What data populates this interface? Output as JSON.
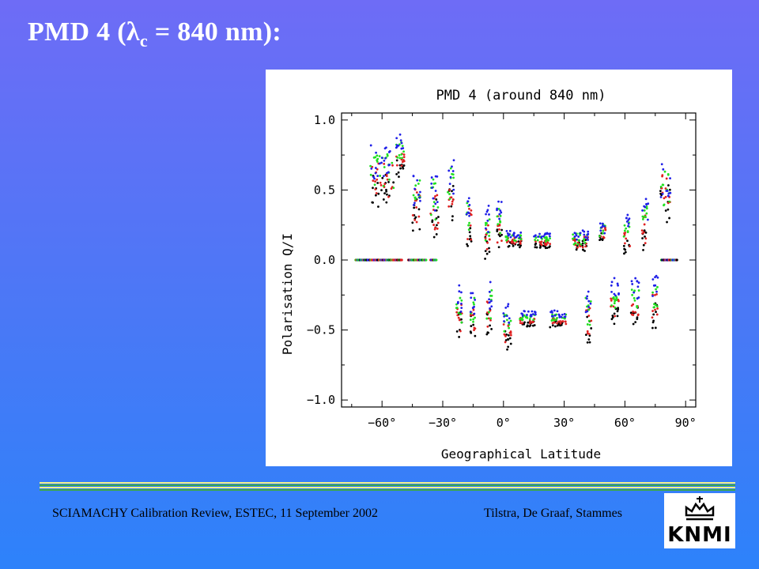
{
  "slide": {
    "title_prefix": "PMD 4 (",
    "title_lambda": "λ",
    "title_sub": "c",
    "title_suffix": " = 840 nm):",
    "footer_left": "SCIAMACHY Calibration Review, ESTEC, 11 September 2002",
    "footer_right": "Tilstra, De Graaf, Stammes",
    "logo_text": "KNMI",
    "colors": {
      "background_top": "#6e6cf6",
      "background_bottom": "#2d82fa",
      "rule_yellow": "#f2f28c",
      "rule_green": "#3ca848"
    }
  },
  "chart_data": {
    "type": "scatter",
    "title": "PMD 4 (around 840 nm)",
    "xlabel": "Geographical Latitude",
    "ylabel": "Polarisation Q/I",
    "xlim": [
      -80,
      95
    ],
    "ylim": [
      -1.05,
      1.05
    ],
    "xticks": [
      -60,
      -30,
      0,
      30,
      60,
      90
    ],
    "xtick_labels": [
      "−60°",
      "−30°",
      "0°",
      "30°",
      "60°",
      "90°"
    ],
    "yticks": [
      1.0,
      0.5,
      0.0,
      -0.5,
      -1.0
    ],
    "ytick_labels": [
      "1.0",
      "0.5",
      "0.0",
      "−0.5",
      "−1.0"
    ],
    "grid": false,
    "series_colors": [
      "#000000",
      "#e02020",
      "#20e020",
      "#2020e8"
    ],
    "clusters": [
      {
        "x": -60,
        "width": 12,
        "y": 0.6,
        "spread": 0.25
      },
      {
        "x": -51,
        "width": 4,
        "y": 0.75,
        "spread": 0.12
      },
      {
        "x": -43,
        "width": 4,
        "y": 0.42,
        "spread": 0.25
      },
      {
        "x": -34,
        "width": 4,
        "y": 0.4,
        "spread": 0.3
      },
      {
        "x": -26,
        "width": 3,
        "y": 0.5,
        "spread": 0.25
      },
      {
        "x": -22,
        "width": 3,
        "y": -0.38,
        "spread": 0.22
      },
      {
        "x": -17,
        "width": 2.5,
        "y": 0.3,
        "spread": 0.25
      },
      {
        "x": -15,
        "width": 2.5,
        "y": -0.38,
        "spread": 0.2
      },
      {
        "x": -8,
        "width": 2.5,
        "y": 0.2,
        "spread": 0.2
      },
      {
        "x": -7,
        "width": 2.5,
        "y": -0.35,
        "spread": 0.22
      },
      {
        "x": -2,
        "width": 2.5,
        "y": 0.25,
        "spread": 0.2
      },
      {
        "x": 2,
        "width": 4,
        "y": -0.48,
        "spread": 0.15
      },
      {
        "x": 5,
        "width": 8,
        "y": 0.15,
        "spread": 0.05
      },
      {
        "x": 12,
        "width": 8,
        "y": -0.42,
        "spread": 0.04
      },
      {
        "x": 19,
        "width": 8,
        "y": 0.14,
        "spread": 0.04
      },
      {
        "x": 27,
        "width": 8,
        "y": -0.42,
        "spread": 0.05
      },
      {
        "x": 38,
        "width": 8,
        "y": 0.14,
        "spread": 0.08
      },
      {
        "x": 42,
        "width": 3,
        "y": -0.4,
        "spread": 0.2
      },
      {
        "x": 49,
        "width": 3,
        "y": 0.2,
        "spread": 0.1
      },
      {
        "x": 55,
        "width": 4,
        "y": -0.3,
        "spread": 0.15
      },
      {
        "x": 61,
        "width": 3,
        "y": 0.18,
        "spread": 0.12
      },
      {
        "x": 65,
        "width": 4,
        "y": -0.3,
        "spread": 0.15
      },
      {
        "x": 70,
        "width": 3,
        "y": 0.25,
        "spread": 0.2
      },
      {
        "x": 75,
        "width": 3,
        "y": -0.3,
        "spread": 0.18
      },
      {
        "x": 80,
        "width": 5,
        "y": 0.5,
        "spread": 0.3
      }
    ],
    "zero_band": [
      [
        -73,
        -50
      ],
      [
        -47,
        -38
      ],
      [
        -36,
        -33
      ],
      [
        78,
        86
      ]
    ]
  }
}
